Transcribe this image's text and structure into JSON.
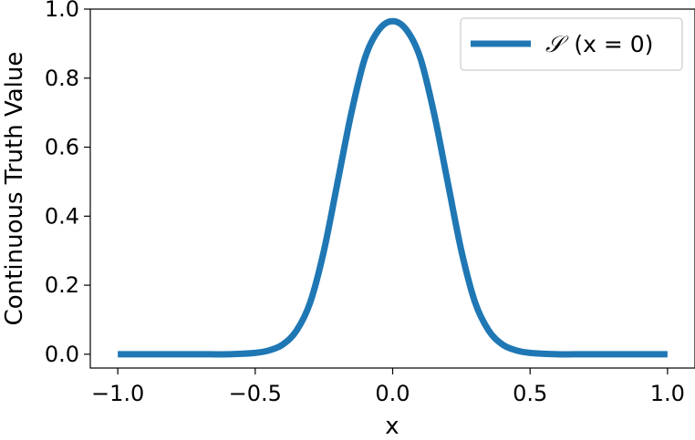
{
  "chart_data": {
    "type": "line",
    "title": "",
    "xlabel": "x",
    "ylabel": "Continuous Truth Value",
    "xlim": [
      -1.1,
      1.1
    ],
    "ylim": [
      -0.04,
      1.0
    ],
    "x_ticks": [
      -1.0,
      -0.5,
      0.0,
      0.5,
      1.0
    ],
    "x_tick_labels": [
      "−1.0",
      "−0.5",
      "0.0",
      "0.5",
      "1.0"
    ],
    "y_ticks": [
      0.0,
      0.2,
      0.4,
      0.6,
      0.8,
      1.0
    ],
    "y_tick_labels": [
      "0.0",
      "0.2",
      "0.4",
      "0.6",
      "0.8",
      "1.0"
    ],
    "grid": false,
    "legend_position": "top-right",
    "series": [
      {
        "name": "𝒮 (x = 0)",
        "color": "#1f77b4",
        "x": [
          -1.0,
          -0.9,
          -0.8,
          -0.7,
          -0.6,
          -0.5,
          -0.45,
          -0.4,
          -0.35,
          -0.3,
          -0.25,
          -0.2,
          -0.15,
          -0.1,
          -0.05,
          0.0,
          0.05,
          0.1,
          0.15,
          0.2,
          0.25,
          0.3,
          0.35,
          0.4,
          0.45,
          0.5,
          0.6,
          0.7,
          0.8,
          0.9,
          1.0
        ],
        "y": [
          0.0,
          0.0,
          0.0,
          0.0,
          0.0,
          0.004,
          0.011,
          0.028,
          0.068,
          0.15,
          0.3,
          0.5,
          0.7,
          0.86,
          0.94,
          0.965,
          0.94,
          0.86,
          0.7,
          0.5,
          0.3,
          0.15,
          0.068,
          0.028,
          0.011,
          0.004,
          0.0,
          0.0,
          0.0,
          0.0,
          0.0
        ]
      }
    ]
  },
  "legend": {
    "prefix": "𝒮",
    "label": "(x = 0)"
  }
}
